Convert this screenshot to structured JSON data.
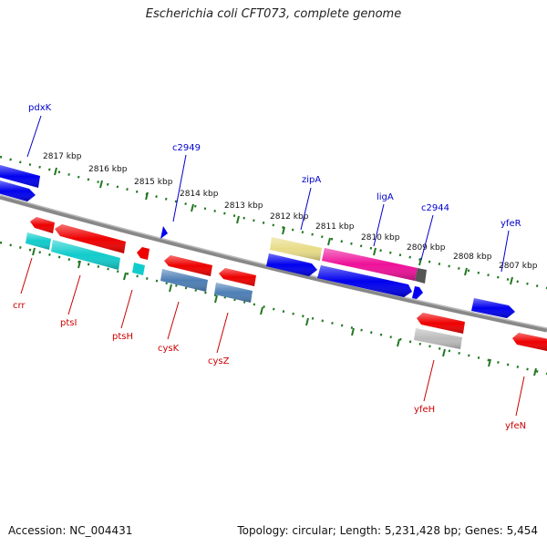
{
  "title": "Escherichia coli CFT073, complete genome",
  "footer": {
    "accession": "Accession: NC_004431",
    "topology": "Topology: circular; Length: 5,231,428 bp; Genes: 5,454"
  },
  "colors": {
    "forward_strand": "#0000ee",
    "reverse_strand": "#ee0000",
    "tick": "#227722",
    "backbone": "#888888",
    "fwd_label": "#0000cc",
    "rev_label": "#cc0000"
  },
  "kbp_labels": [
    "2817 kbp",
    "2816 kbp",
    "2815 kbp",
    "2814 kbp",
    "2813 kbp",
    "2812 kbp",
    "2811 kbp",
    "2810 kbp",
    "2809 kbp",
    "2808 kbp",
    "2807 kbp"
  ],
  "forward_genes": [
    "pdxK",
    "c2949",
    "zipA",
    "ligA",
    "c2944",
    "yfeR"
  ],
  "reverse_genes": [
    "crr",
    "ptsI",
    "ptsH",
    "cysK",
    "cysZ",
    "yfeH",
    "yfeN"
  ]
}
